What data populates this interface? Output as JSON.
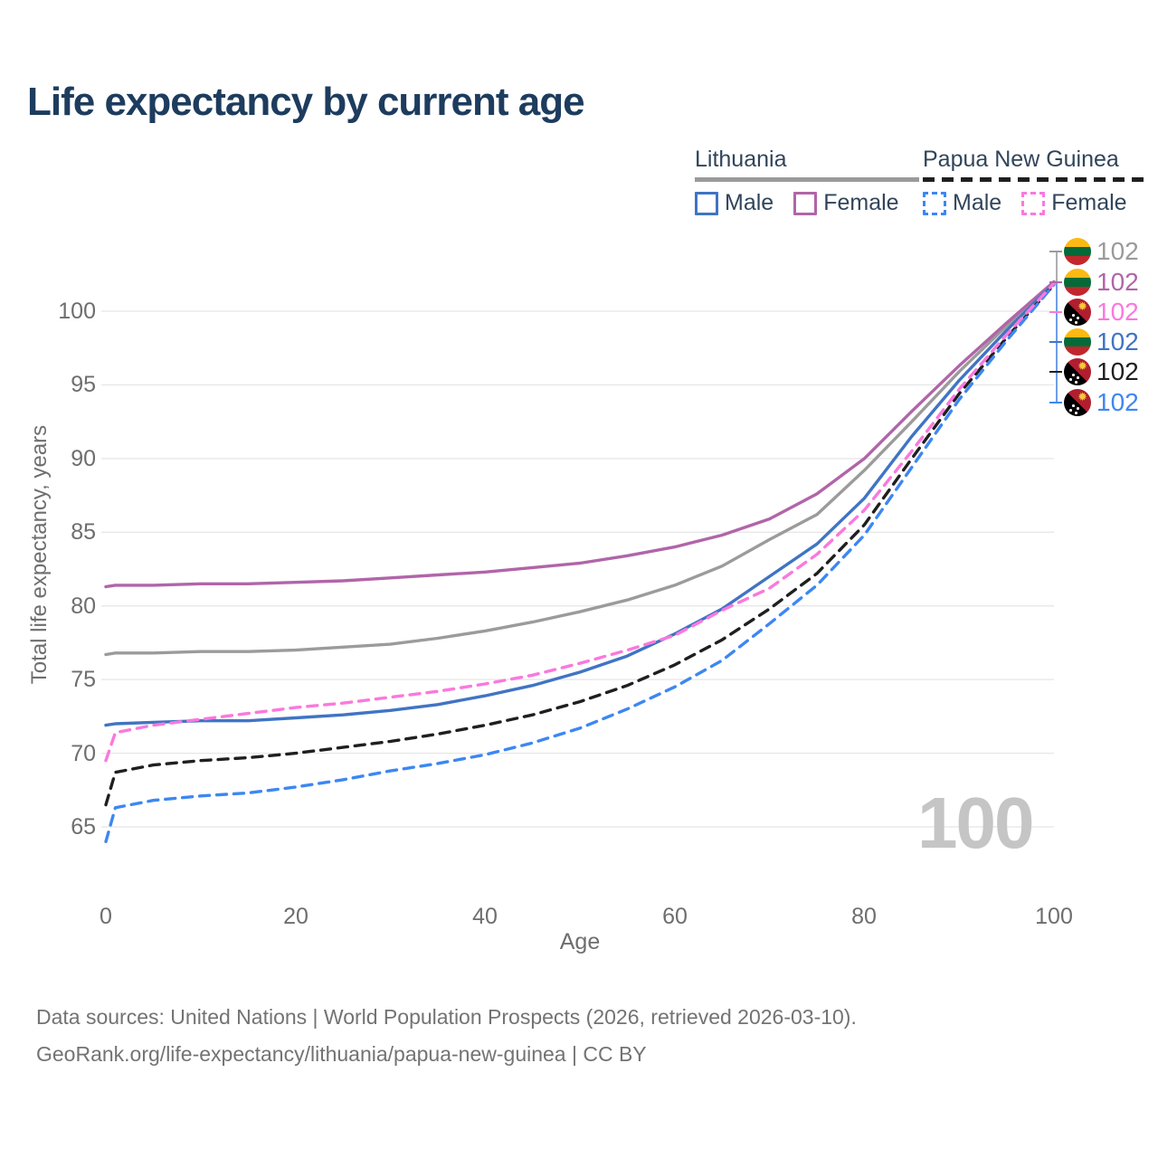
{
  "title": "Life expectancy by current age",
  "legend": {
    "groups": [
      {
        "title": "Lithuania",
        "line_style": "solid",
        "underline_color": "#9a9a9a",
        "items": [
          {
            "label": "Male",
            "color": "#4074c4"
          },
          {
            "label": "Female",
            "color": "#b165a8"
          }
        ]
      },
      {
        "title": "Papua New Guinea",
        "line_style": "dashed",
        "underline_color": "#1f1f1f",
        "items": [
          {
            "label": "Male",
            "color": "#3d87f2"
          },
          {
            "label": "Female",
            "color": "#fb78dd"
          }
        ]
      }
    ]
  },
  "right_labels": [
    {
      "flag": "lt",
      "value": "102",
      "color": "#9b9b9b"
    },
    {
      "flag": "lt",
      "value": "102",
      "color": "#b165a8"
    },
    {
      "flag": "pg",
      "value": "102",
      "color": "#fb78dd"
    },
    {
      "flag": "lt",
      "value": "102",
      "color": "#4074c4"
    },
    {
      "flag": "pg",
      "value": "102",
      "color": "#1f1f1f"
    },
    {
      "flag": "pg",
      "value": "102",
      "color": "#3d87f2"
    }
  ],
  "watermark": "100",
  "footer": {
    "line1": "Data sources: United Nations | World Population Prospects (2026, retrieved 2026-03-10).",
    "line2": "GeoRank.org/life-expectancy/lithuania/papua-new-guinea | CC BY"
  },
  "chart_data": {
    "type": "line",
    "title": "Life expectancy by current age",
    "xlabel": "Age",
    "ylabel": "Total life expectancy, years",
    "xlim": [
      0,
      100
    ],
    "ylim": [
      63,
      103
    ],
    "xticks": [
      0,
      20,
      40,
      60,
      80,
      100
    ],
    "yticks": [
      65,
      70,
      75,
      80,
      85,
      90,
      95,
      100
    ],
    "grid": "horizontal",
    "legend_position": "top-right",
    "x": [
      0,
      1,
      5,
      10,
      15,
      20,
      25,
      30,
      35,
      40,
      45,
      50,
      55,
      60,
      65,
      70,
      75,
      80,
      85,
      90,
      95,
      100
    ],
    "series": [
      {
        "name": "Lithuania — Both sexes",
        "country": "Lithuania",
        "color": "#9b9b9b",
        "dash": false,
        "end_label": "102",
        "values": [
          76.7,
          76.8,
          76.8,
          76.9,
          76.9,
          77.0,
          77.2,
          77.4,
          77.8,
          78.3,
          78.9,
          79.6,
          80.4,
          81.4,
          82.7,
          84.5,
          86.2,
          89.2,
          92.5,
          95.9,
          99.0,
          101.9
        ]
      },
      {
        "name": "Lithuania — Female",
        "country": "Lithuania",
        "color": "#b165a8",
        "dash": false,
        "end_label": "102",
        "values": [
          81.3,
          81.4,
          81.4,
          81.5,
          81.5,
          81.6,
          81.7,
          81.9,
          82.1,
          82.3,
          82.6,
          82.9,
          83.4,
          84.0,
          84.8,
          85.9,
          87.6,
          90.0,
          93.2,
          96.3,
          99.2,
          102.0
        ]
      },
      {
        "name": "Lithuania — Male",
        "country": "Lithuania",
        "color": "#4074c4",
        "dash": false,
        "end_label": "102",
        "values": [
          71.9,
          72.0,
          72.1,
          72.2,
          72.2,
          72.4,
          72.6,
          72.9,
          73.3,
          73.9,
          74.6,
          75.5,
          76.6,
          78.1,
          79.8,
          82.0,
          84.2,
          87.3,
          91.5,
          95.3,
          98.7,
          101.9
        ]
      },
      {
        "name": "Papua New Guinea — Both sexes",
        "country": "Papua New Guinea",
        "color": "#1f1f1f",
        "dash": true,
        "end_label": "102",
        "values": [
          66.5,
          68.7,
          69.2,
          69.5,
          69.7,
          70.0,
          70.4,
          70.8,
          71.3,
          71.9,
          72.6,
          73.5,
          74.6,
          76.0,
          77.7,
          79.8,
          82.2,
          85.5,
          90.0,
          94.4,
          98.2,
          101.8
        ]
      },
      {
        "name": "Papua New Guinea — Male",
        "country": "Papua New Guinea",
        "color": "#3d87f2",
        "dash": true,
        "end_label": "102",
        "values": [
          64.0,
          66.3,
          66.8,
          67.1,
          67.3,
          67.7,
          68.2,
          68.8,
          69.3,
          69.9,
          70.7,
          71.7,
          73.0,
          74.5,
          76.3,
          78.8,
          81.4,
          84.8,
          89.4,
          94.0,
          98.0,
          101.8
        ]
      },
      {
        "name": "Papua New Guinea — Female",
        "country": "Papua New Guinea",
        "color": "#fb78dd",
        "dash": true,
        "end_label": "102",
        "values": [
          69.5,
          71.4,
          71.9,
          72.3,
          72.7,
          73.1,
          73.4,
          73.8,
          74.2,
          74.7,
          75.3,
          76.1,
          77.0,
          78.0,
          79.7,
          81.2,
          83.5,
          86.5,
          90.5,
          94.7,
          98.4,
          101.9
        ]
      }
    ]
  }
}
